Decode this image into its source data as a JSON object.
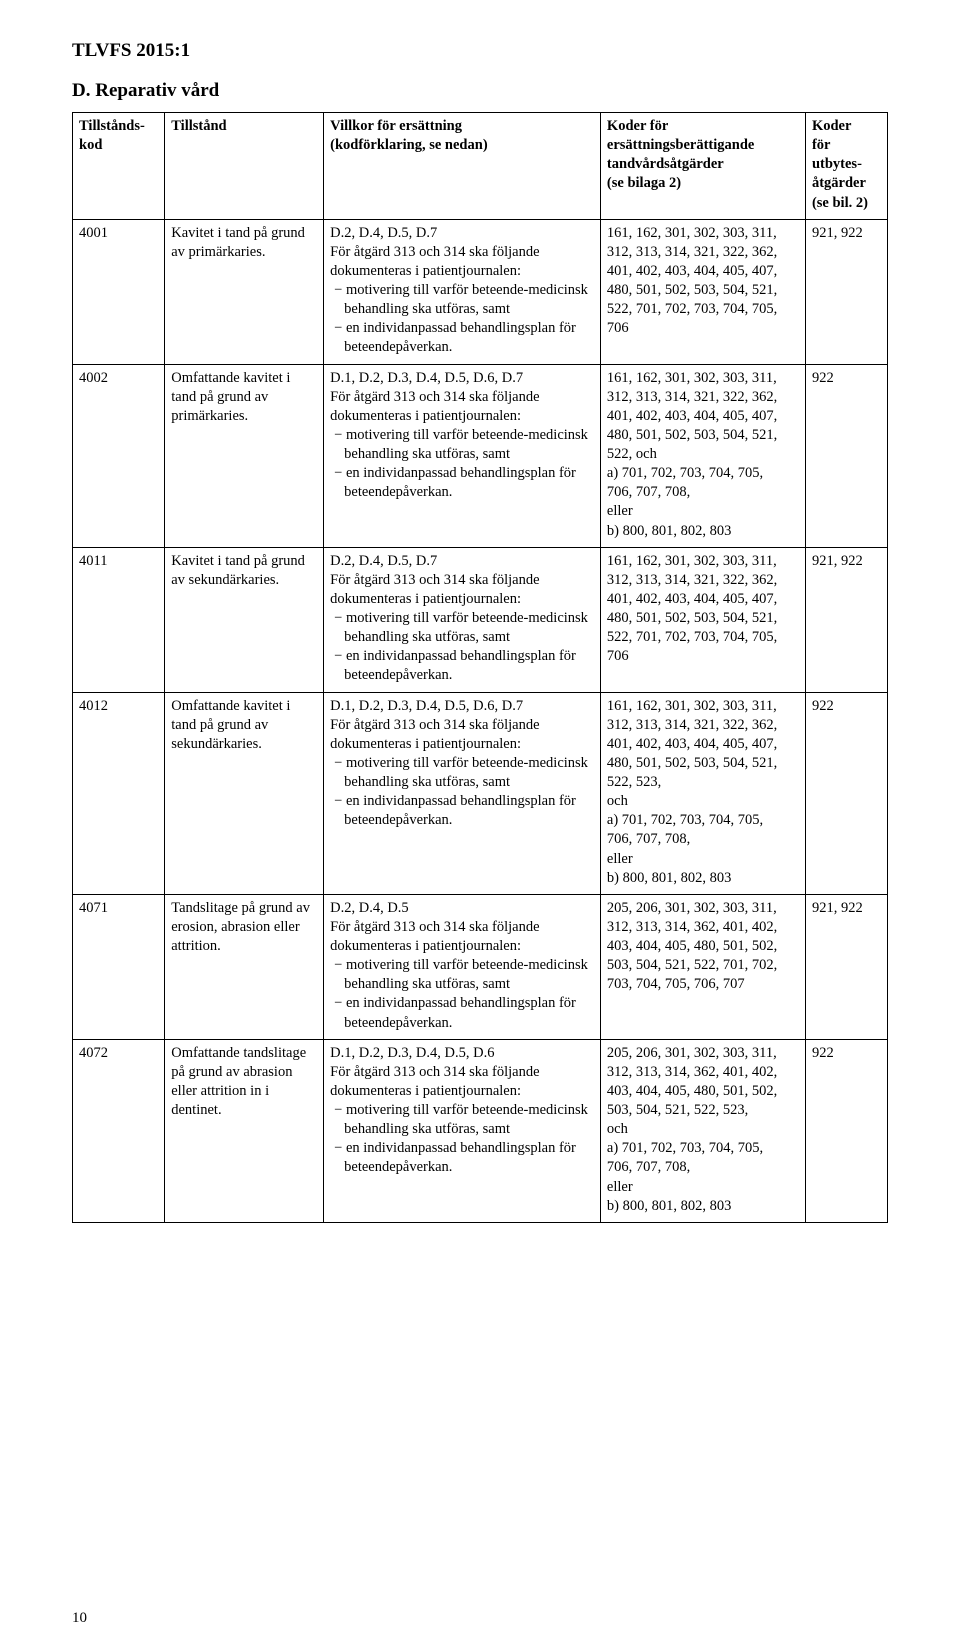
{
  "header": {
    "doc_code": "TLVFS 2015:1",
    "section_title": "D. Reparativ vård",
    "page_number": "10"
  },
  "table": {
    "columns": [
      {
        "line1": "Tillstånds-",
        "line2": "kod"
      },
      {
        "line1": "Tillstånd",
        "line2": ""
      },
      {
        "line1": "Villkor för ersättning",
        "line2": "(kodförklaring, se nedan)"
      },
      {
        "line1": "Koder för",
        "line2": "ersättningsberättigande",
        "line3": "tandvårdsåtgärder",
        "line4": "(se bilaga 2)"
      },
      {
        "line1": "Koder",
        "line2": "för",
        "line3": "utbytes-",
        "line4": "åtgärder",
        "line5": "(se bil. 2)"
      }
    ],
    "rows": [
      {
        "kod": "4001",
        "tillstand": "Kavitet i tand på grund av primärkaries.",
        "villkor_head": "D.2, D.4, D.5, D.7",
        "villkor_intro": "För åtgärd 313 och 314 ska följande dokumenteras i patientjournalen:",
        "villkor_b1": "− motivering till varför beteende-medicinsk behandling ska utföras, samt",
        "villkor_b2": "− en individanpassad behandlingsplan för beteendepåverkan.",
        "koder_ersatt": "161, 162, 301, 302, 303, 311, 312, 313, 314, 321, 322, 362, 401, 402, 403, 404, 405, 407,  480, 501, 502, 503, 504, 521, 522, 701, 702, 703, 704, 705, 706",
        "koder_utbyte": "921, 922"
      },
      {
        "kod": "4002",
        "tillstand": "Omfattande kavitet i tand på grund av primärkaries.",
        "villkor_head": "D.1, D.2, D.3, D.4, D.5, D.6, D.7",
        "villkor_intro": "För åtgärd 313 och 314 ska följande dokumenteras i patientjournalen:",
        "villkor_b1": "− motivering till varför beteende-medicinsk behandling ska utföras, samt",
        "villkor_b2": "− en individanpassad behandlingsplan för beteendepåverkan.",
        "koder_ersatt": "161, 162, 301, 302, 303, 311, 312, 313, 314, 321, 322, 362, 401, 402, 403, 404, 405, 407,  480, 501, 502, 503, 504, 521, 522, och\na) 701, 702, 703, 704, 705,\n    706, 707, 708,\neller\nb) 800, 801, 802, 803",
        "koder_utbyte": "922"
      },
      {
        "kod": "4011",
        "tillstand": "Kavitet i tand på grund av sekundärkaries.",
        "villkor_head": "D.2, D.4, D.5, D.7",
        "villkor_intro": "För åtgärd 313 och 314 ska följande dokumenteras i patientjournalen:",
        "villkor_b1": "− motivering till varför beteende-medicinsk behandling ska utföras, samt",
        "villkor_b2": "− en individanpassad behandlingsplan för beteendepåverkan.",
        "koder_ersatt": "161, 162, 301, 302, 303, 311, 312, 313, 314, 321, 322, 362, 401, 402, 403, 404, 405, 407,  480, 501, 502, 503, 504, 521, 522, 701, 702, 703, 704, 705, 706",
        "koder_utbyte": "921, 922"
      },
      {
        "kod": "4012",
        "tillstand": "Omfattande kavitet i tand på grund av sekundärkaries.",
        "villkor_head": "D.1, D.2, D.3, D.4, D.5, D.6, D.7",
        "villkor_intro": "För åtgärd 313 och 314 ska följande dokumenteras i patientjournalen:",
        "villkor_b1": "− motivering till varför beteende-medicinsk behandling ska utföras, samt",
        "villkor_b2": "− en individanpassad behandlingsplan för beteendepåverkan.",
        "koder_ersatt": "161, 162, 301, 302, 303, 311, 312, 313, 314, 321, 322, 362, 401, 402, 403, 404, 405, 407,  480, 501, 502, 503, 504, 521, 522, 523,\noch\na) 701, 702, 703, 704, 705,\n    706, 707, 708,\neller\nb) 800, 801, 802, 803",
        "koder_utbyte": "922"
      },
      {
        "kod": "4071",
        "tillstand": "Tandslitage på grund av erosion, abrasion eller attrition.",
        "villkor_head": "D.2, D.4, D.5",
        "villkor_intro": "För åtgärd 313 och 314 ska följande dokumenteras i patientjournalen:",
        "villkor_b1": "− motivering till varför beteende-medicinsk behandling ska utföras, samt",
        "villkor_b2": "− en individanpassad behandlingsplan för beteendepåverkan.",
        "koder_ersatt": "205, 206, 301, 302, 303, 311, 312, 313, 314, 362, 401, 402, 403, 404, 405, 480, 501, 502, 503, 504, 521, 522, 701, 702, 703, 704, 705, 706, 707",
        "koder_utbyte": "921, 922"
      },
      {
        "kod": "4072",
        "tillstand": "Omfattande tandslitage på grund av abrasion eller attrition in i dentinet.",
        "villkor_head": "D.1, D.2, D.3, D.4, D.5, D.6",
        "villkor_intro": "För åtgärd 313 och 314 ska följande dokumenteras i patientjournalen:",
        "villkor_b1": "− motivering till varför beteende-medicinsk behandling ska utföras, samt",
        "villkor_b2": "− en individanpassad behandlingsplan för beteendepåverkan.",
        "koder_ersatt": "205, 206, 301, 302, 303, 311, 312, 313, 314, 362, 401, 402, 403, 404, 405, 480, 501, 502, 503, 504, 521, 522, 523,\noch\na) 701, 702, 703, 704, 705,\n    706, 707, 708,\neller\nb) 800, 801, 802, 803",
        "koder_utbyte": "922"
      }
    ]
  }
}
